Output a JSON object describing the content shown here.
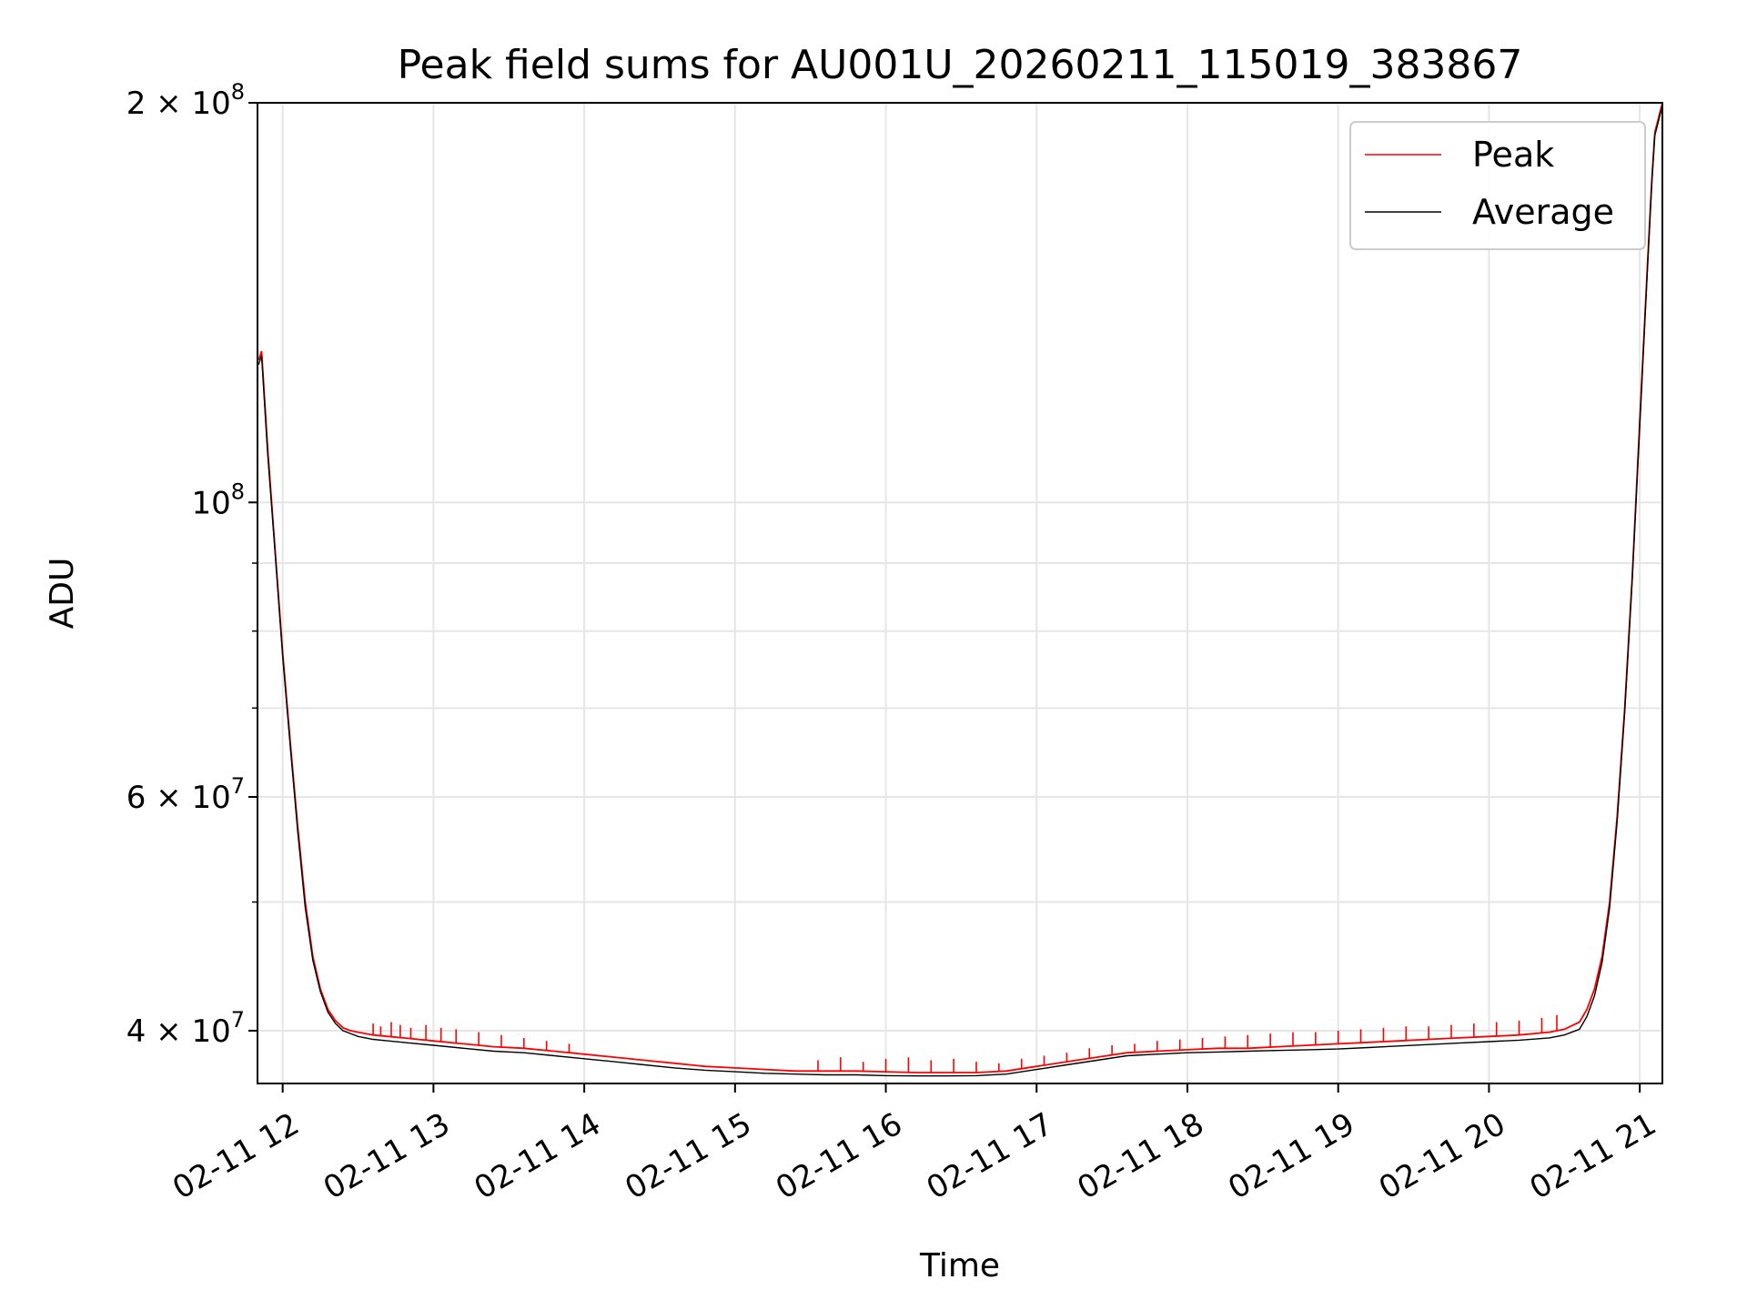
{
  "chart_data": {
    "type": "line",
    "title": "Peak field sums for AU001U_20260211_115019_383867",
    "xlabel": "Time",
    "ylabel": "ADU",
    "x_ticks": [
      "02-11 12",
      "02-11 13",
      "02-11 14",
      "02-11 15",
      "02-11 16",
      "02-11 17",
      "02-11 18",
      "02-11 19",
      "02-11 20",
      "02-11 21"
    ],
    "x_tick_hours": [
      12,
      13,
      14,
      15,
      16,
      17,
      18,
      19,
      20,
      21
    ],
    "xlim_hours": [
      11.833,
      21.15
    ],
    "y_scale": "log",
    "ylim": [
      36500000,
      200000000
    ],
    "y_major_ticks": [
      {
        "value": 40000000,
        "mant": "4",
        "exp": "7"
      },
      {
        "value": 60000000,
        "mant": "6",
        "exp": "7"
      },
      {
        "value": 100000000,
        "mant": "",
        "exp": "8"
      },
      {
        "value": 200000000,
        "mant": "2",
        "exp": "8"
      }
    ],
    "y_minor_ticks": [
      50000000,
      70000000,
      80000000,
      90000000
    ],
    "grid": true,
    "legend_position": "top-right",
    "series": [
      {
        "name": "Peak",
        "color": "#ff0000",
        "x_hours": [
          11.84,
          11.86,
          11.9,
          11.95,
          12.0,
          12.05,
          12.1,
          12.15,
          12.2,
          12.25,
          12.3,
          12.35,
          12.4,
          12.45,
          12.5,
          12.6,
          12.7,
          12.8,
          13.0,
          13.2,
          13.4,
          13.6,
          13.8,
          14.0,
          14.2,
          14.4,
          14.6,
          14.8,
          15.0,
          15.2,
          15.4,
          15.6,
          15.8,
          16.0,
          16.2,
          16.4,
          16.6,
          16.8,
          17.0,
          17.2,
          17.4,
          17.6,
          17.8,
          18.0,
          18.2,
          18.4,
          18.6,
          18.8,
          19.0,
          19.2,
          19.4,
          19.6,
          19.8,
          20.0,
          20.2,
          20.4,
          20.5,
          20.6,
          20.65,
          20.7,
          20.75,
          20.8,
          20.85,
          20.9,
          20.95,
          21.0,
          21.05,
          21.08,
          21.1,
          21.15
        ],
        "values": [
          128000000,
          130000000,
          110000000,
          92000000,
          77000000,
          66000000,
          57000000,
          50000000,
          45500000,
          43000000,
          41500000,
          40700000,
          40200000,
          40000000,
          39900000,
          39700000,
          39600000,
          39500000,
          39300000,
          39100000,
          38900000,
          38800000,
          38600000,
          38400000,
          38200000,
          38000000,
          37800000,
          37600000,
          37500000,
          37400000,
          37300000,
          37300000,
          37300000,
          37250000,
          37200000,
          37200000,
          37200000,
          37300000,
          37600000,
          37900000,
          38200000,
          38500000,
          38600000,
          38700000,
          38800000,
          38800000,
          38900000,
          39000000,
          39100000,
          39200000,
          39300000,
          39400000,
          39500000,
          39600000,
          39700000,
          39900000,
          40100000,
          40600000,
          41500000,
          43000000,
          45500000,
          50000000,
          58000000,
          70000000,
          88000000,
          115000000,
          150000000,
          175000000,
          190000000,
          200000000
        ],
        "spikes": [
          [
            12.6,
            40500000
          ],
          [
            12.65,
            40300000
          ],
          [
            12.72,
            40600000
          ],
          [
            12.78,
            40400000
          ],
          [
            12.85,
            40200000
          ],
          [
            12.95,
            40400000
          ],
          [
            13.05,
            40200000
          ],
          [
            13.15,
            40100000
          ],
          [
            13.3,
            39900000
          ],
          [
            13.45,
            39700000
          ],
          [
            13.6,
            39500000
          ],
          [
            13.75,
            39300000
          ],
          [
            13.9,
            39100000
          ],
          [
            15.55,
            38000000
          ],
          [
            15.7,
            38200000
          ],
          [
            15.85,
            37900000
          ],
          [
            16.0,
            38100000
          ],
          [
            16.15,
            38200000
          ],
          [
            16.3,
            38000000
          ],
          [
            16.45,
            38100000
          ],
          [
            16.6,
            37900000
          ],
          [
            16.75,
            37800000
          ],
          [
            16.9,
            38100000
          ],
          [
            17.05,
            38300000
          ],
          [
            17.2,
            38500000
          ],
          [
            17.35,
            38800000
          ],
          [
            17.5,
            39000000
          ],
          [
            17.65,
            39100000
          ],
          [
            17.8,
            39300000
          ],
          [
            17.95,
            39400000
          ],
          [
            18.1,
            39500000
          ],
          [
            18.25,
            39600000
          ],
          [
            18.4,
            39700000
          ],
          [
            18.55,
            39800000
          ],
          [
            18.7,
            39900000
          ],
          [
            18.85,
            39900000
          ],
          [
            19.0,
            40000000
          ],
          [
            19.15,
            40100000
          ],
          [
            19.3,
            40200000
          ],
          [
            19.45,
            40300000
          ],
          [
            19.6,
            40300000
          ],
          [
            19.75,
            40400000
          ],
          [
            19.9,
            40500000
          ],
          [
            20.05,
            40600000
          ],
          [
            20.2,
            40700000
          ],
          [
            20.35,
            40900000
          ],
          [
            20.45,
            41100000
          ]
        ]
      },
      {
        "name": "Average",
        "color": "#000000",
        "x_hours": [
          11.84,
          11.86,
          11.9,
          11.95,
          12.0,
          12.05,
          12.1,
          12.15,
          12.2,
          12.25,
          12.3,
          12.35,
          12.4,
          12.45,
          12.5,
          12.6,
          12.7,
          12.8,
          13.0,
          13.2,
          13.4,
          13.6,
          13.8,
          14.0,
          14.2,
          14.4,
          14.6,
          14.8,
          15.0,
          15.2,
          15.4,
          15.6,
          15.8,
          16.0,
          16.2,
          16.4,
          16.6,
          16.8,
          17.0,
          17.2,
          17.4,
          17.6,
          17.8,
          18.0,
          18.2,
          18.4,
          18.6,
          18.8,
          19.0,
          19.2,
          19.4,
          19.6,
          19.8,
          20.0,
          20.2,
          20.4,
          20.5,
          20.6,
          20.65,
          20.7,
          20.75,
          20.8,
          20.85,
          20.9,
          20.95,
          21.0,
          21.05,
          21.08,
          21.1,
          21.15
        ],
        "values": [
          127000000,
          129000000,
          109000000,
          91500000,
          76500000,
          65500000,
          56500000,
          49500000,
          45200000,
          42800000,
          41300000,
          40500000,
          40000000,
          39800000,
          39600000,
          39400000,
          39300000,
          39200000,
          39000000,
          38800000,
          38600000,
          38500000,
          38300000,
          38100000,
          37900000,
          37700000,
          37500000,
          37350000,
          37250000,
          37150000,
          37100000,
          37050000,
          37050000,
          37000000,
          36980000,
          36980000,
          37000000,
          37100000,
          37400000,
          37700000,
          38000000,
          38300000,
          38400000,
          38500000,
          38550000,
          38600000,
          38650000,
          38700000,
          38750000,
          38850000,
          38950000,
          39050000,
          39150000,
          39250000,
          39350000,
          39500000,
          39700000,
          40100000,
          41000000,
          42500000,
          45000000,
          49500000,
          57500000,
          69500000,
          87500000,
          114000000,
          149000000,
          174000000,
          189000000,
          199000000
        ]
      }
    ]
  }
}
